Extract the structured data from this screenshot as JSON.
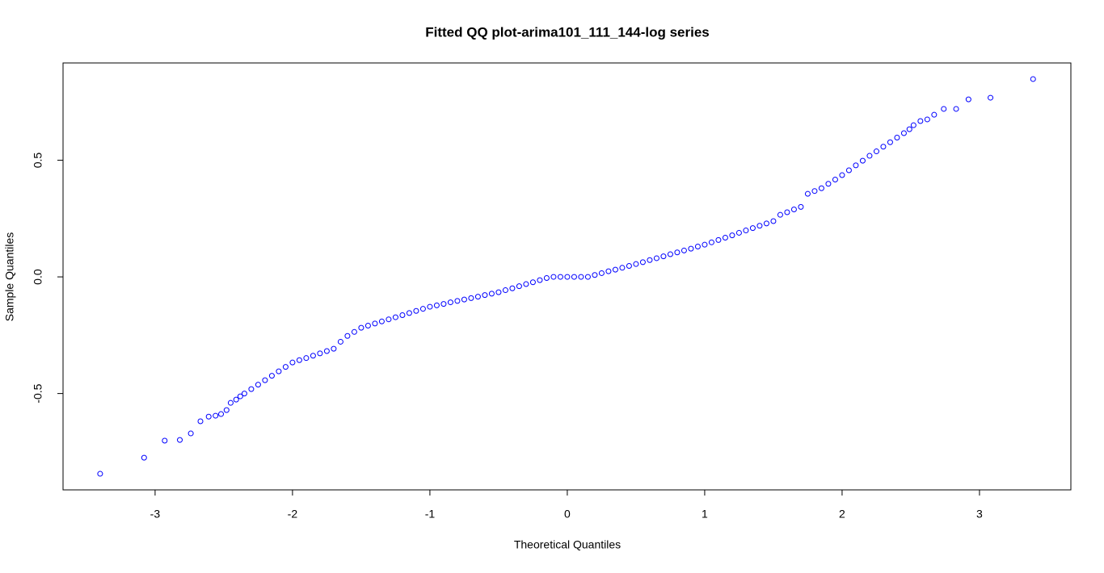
{
  "chart_data": {
    "type": "scatter",
    "title": "Fitted QQ plot-arima101_111_144-log series",
    "xlabel": "Theoretical Quantiles",
    "ylabel": "Sample Quantiles",
    "color": "#0000ff",
    "x": [
      -3.4,
      -3.08,
      -2.93,
      -2.82,
      -2.74,
      -2.67,
      -2.61,
      -2.56,
      -2.52,
      -2.48,
      -2.45,
      -2.41,
      -2.38,
      -2.35,
      -2.3,
      -2.25,
      -2.2,
      -2.15,
      -2.1,
      -2.05,
      -2.0,
      -1.95,
      -1.9,
      -1.85,
      -1.8,
      -1.75,
      -1.7,
      -1.65,
      -1.6,
      -1.55,
      -1.5,
      -1.45,
      -1.4,
      -1.35,
      -1.3,
      -1.25,
      -1.2,
      -1.15,
      -1.1,
      -1.05,
      -1.0,
      -0.95,
      -0.9,
      -0.85,
      -0.8,
      -0.75,
      -0.7,
      -0.65,
      -0.6,
      -0.55,
      -0.5,
      -0.45,
      -0.4,
      -0.35,
      -0.3,
      -0.25,
      -0.2,
      -0.15,
      -0.1,
      -0.05,
      0,
      0.05,
      0.1,
      0.15,
      0.2,
      0.25,
      0.3,
      0.35,
      0.4,
      0.45,
      0.5,
      0.55,
      0.6,
      0.65,
      0.7,
      0.75,
      0.8,
      0.85,
      0.9,
      0.95,
      1.0,
      1.05,
      1.1,
      1.15,
      1.2,
      1.25,
      1.3,
      1.35,
      1.4,
      1.45,
      1.5,
      1.55,
      1.6,
      1.65,
      1.7,
      1.75,
      1.8,
      1.85,
      1.9,
      1.95,
      2.0,
      2.05,
      2.1,
      2.15,
      2.2,
      2.25,
      2.3,
      2.35,
      2.4,
      2.45,
      2.49,
      2.52,
      2.57,
      2.62,
      2.67,
      2.74,
      2.83,
      2.92,
      3.08,
      3.39
    ],
    "values": [
      -0.844,
      -0.775,
      -0.702,
      -0.699,
      -0.671,
      -0.619,
      -0.599,
      -0.595,
      -0.588,
      -0.571,
      -0.54,
      -0.526,
      -0.512,
      -0.5,
      -0.481,
      -0.462,
      -0.443,
      -0.424,
      -0.405,
      -0.386,
      -0.367,
      -0.357,
      -0.348,
      -0.338,
      -0.328,
      -0.318,
      -0.308,
      -0.278,
      -0.253,
      -0.236,
      -0.218,
      -0.209,
      -0.2,
      -0.191,
      -0.182,
      -0.173,
      -0.164,
      -0.155,
      -0.146,
      -0.137,
      -0.128,
      -0.122,
      -0.116,
      -0.109,
      -0.103,
      -0.097,
      -0.091,
      -0.085,
      -0.078,
      -0.072,
      -0.066,
      -0.057,
      -0.049,
      -0.04,
      -0.031,
      -0.023,
      -0.014,
      -0.005,
      0,
      0,
      0,
      0,
      0,
      0,
      0.008,
      0.016,
      0.024,
      0.031,
      0.039,
      0.047,
      0.055,
      0.063,
      0.072,
      0.08,
      0.088,
      0.097,
      0.105,
      0.113,
      0.121,
      0.13,
      0.138,
      0.148,
      0.158,
      0.168,
      0.178,
      0.189,
      0.199,
      0.209,
      0.219,
      0.229,
      0.239,
      0.266,
      0.277,
      0.289,
      0.3,
      0.356,
      0.368,
      0.38,
      0.399,
      0.417,
      0.436,
      0.457,
      0.478,
      0.498,
      0.519,
      0.538,
      0.558,
      0.577,
      0.597,
      0.616,
      0.633,
      0.65,
      0.668,
      0.675,
      0.695,
      0.72,
      0.72,
      0.761,
      0.768,
      0.848
    ],
    "xlim": [
      -3.67,
      3.665
    ],
    "ylim": [
      -0.913,
      0.917
    ],
    "xticks": [
      -3,
      -2,
      -1,
      0,
      1,
      2,
      3
    ],
    "yticks": [
      -0.5,
      {
        "value": 0,
        "label": "0.0"
      },
      0.5
    ]
  }
}
